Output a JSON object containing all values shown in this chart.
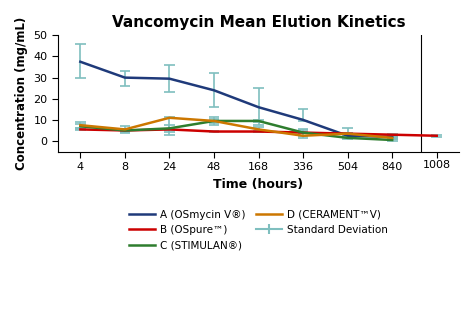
{
  "title": "Vancomycin Mean Elution Kinetics",
  "xlabel": "Time (hours)",
  "ylabel": "Concentration (mg/mL)",
  "x_positions": [
    0,
    1,
    2,
    3,
    4,
    5,
    6,
    7,
    8
  ],
  "x_labels": [
    "4",
    "8",
    "24",
    "48",
    "168",
    "336",
    "504",
    "840",
    "1008"
  ],
  "ylim": [
    -5,
    50
  ],
  "yticks": [
    0,
    10,
    20,
    30,
    40,
    50
  ],
  "series": {
    "A": {
      "label": "A (OSmycin V®)",
      "color": "#1f3a7a",
      "values": [
        37.5,
        30.0,
        29.5,
        24.0,
        16.0,
        10.0,
        2.5,
        2.0,
        null
      ],
      "err_lower": [
        7.5,
        4.0,
        6.5,
        8.0,
        8.5,
        0.5,
        0.5,
        0.5,
        null
      ],
      "err_upper": [
        8.5,
        3.0,
        6.5,
        8.0,
        9.0,
        5.0,
        3.5,
        0.5,
        null
      ]
    },
    "B": {
      "label": "B (OSpure™)",
      "color": "#cc0000",
      "values": [
        5.5,
        5.0,
        5.5,
        4.5,
        4.5,
        4.0,
        3.5,
        3.0,
        2.5
      ],
      "err_lower": [
        0.4,
        0.4,
        0.4,
        0.4,
        0.4,
        0.4,
        0.4,
        0.4,
        0.4
      ],
      "err_upper": [
        0.4,
        0.4,
        0.4,
        0.4,
        0.4,
        0.4,
        0.4,
        0.4,
        0.4
      ]
    },
    "C": {
      "label": "C (STIMULAN®)",
      "color": "#2e7d2e",
      "values": [
        7.0,
        5.0,
        6.0,
        9.5,
        9.5,
        4.0,
        1.5,
        0.5,
        null
      ],
      "err_lower": [
        1.0,
        0.5,
        1.5,
        1.0,
        0.5,
        1.5,
        0.5,
        0.5,
        null
      ],
      "err_upper": [
        1.0,
        0.5,
        1.5,
        1.0,
        0.5,
        1.5,
        0.5,
        0.5,
        null
      ]
    },
    "D": {
      "label": "D (CERAMENT™V)",
      "color": "#cc7700",
      "values": [
        7.5,
        5.5,
        11.0,
        9.5,
        5.5,
        2.5,
        3.5,
        1.5,
        null
      ],
      "err_lower": [
        1.5,
        1.5,
        8.0,
        2.0,
        1.0,
        1.0,
        0.5,
        0.5,
        null
      ],
      "err_upper": [
        1.5,
        1.5,
        0.5,
        2.0,
        1.0,
        2.5,
        0.5,
        0.5,
        null
      ]
    }
  },
  "err_color": "#7fbfbf",
  "background": "#ffffff"
}
